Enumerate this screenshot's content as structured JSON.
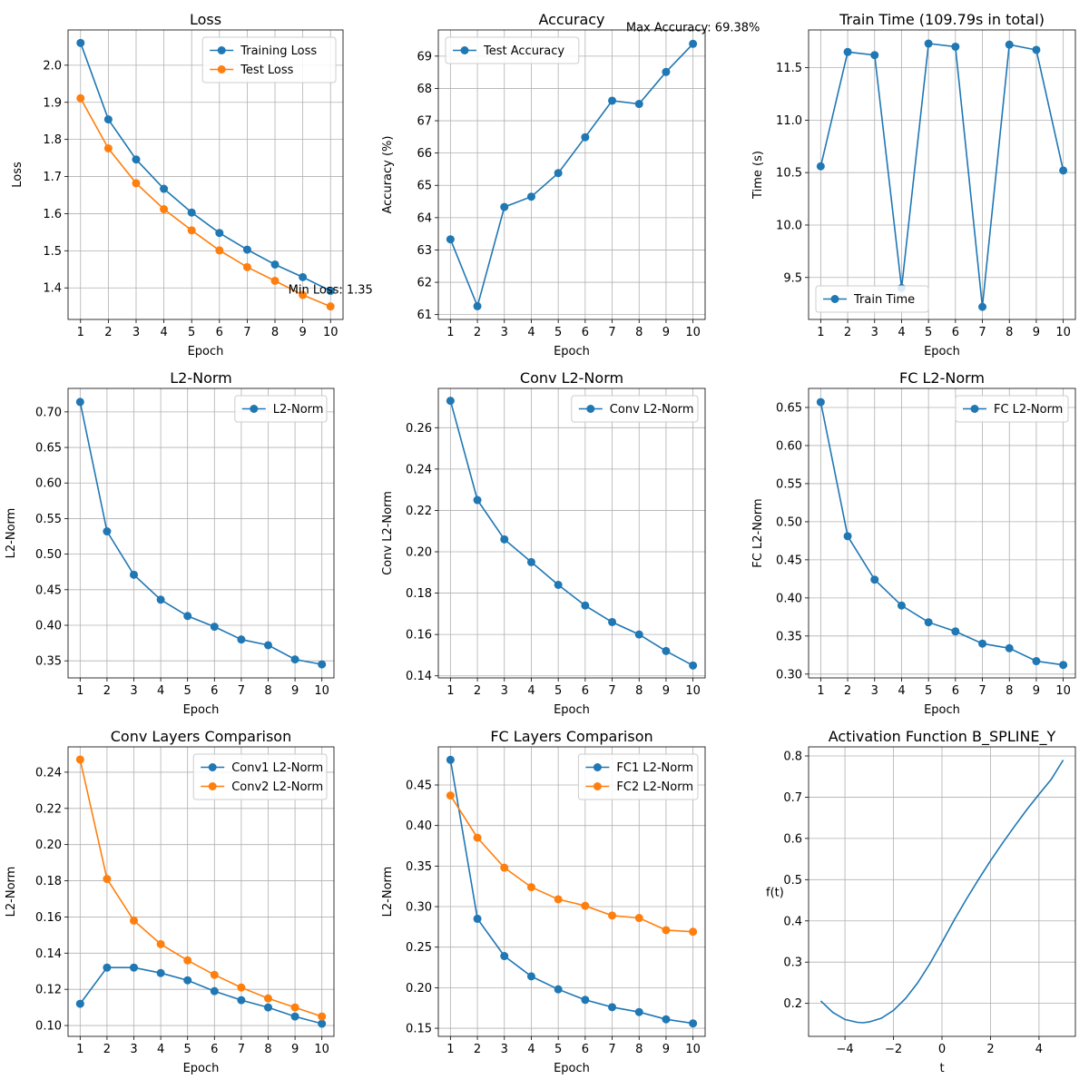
{
  "chart_data": [
    {
      "type": "line",
      "title": "Loss",
      "xlabel": "Epoch",
      "ylabel": "Loss",
      "x": [
        1,
        2,
        3,
        4,
        5,
        6,
        7,
        8,
        9,
        10
      ],
      "xticks": [
        1,
        2,
        3,
        4,
        5,
        6,
        7,
        8,
        9,
        10
      ],
      "xlim": [
        0.55,
        10.45
      ],
      "ylim": [
        1.315,
        2.095
      ],
      "yticks": [
        1.4,
        1.5,
        1.6,
        1.7,
        1.8,
        1.9,
        2.0
      ],
      "ytick_labels": [
        "1.4",
        "1.5",
        "1.6",
        "1.7",
        "1.8",
        "1.9",
        "2.0"
      ],
      "grid": true,
      "legend": "upper right",
      "series": [
        {
          "name": "Training Loss",
          "color": "#1f77b4",
          "values": [
            2.06,
            1.854,
            1.746,
            1.667,
            1.603,
            1.548,
            1.503,
            1.463,
            1.429,
            1.392
          ]
        },
        {
          "name": "Test Loss",
          "color": "#ff7f0e",
          "values": [
            1.911,
            1.776,
            1.682,
            1.612,
            1.555,
            1.501,
            1.456,
            1.419,
            1.381,
            1.35
          ]
        }
      ],
      "annotation": {
        "text": "Min Loss: 1.35",
        "x": 10,
        "y": 1.35
      }
    },
    {
      "type": "line",
      "title": "Accuracy",
      "xlabel": "Epoch",
      "ylabel": "Accuracy (%)",
      "x": [
        1,
        2,
        3,
        4,
        5,
        6,
        7,
        8,
        9,
        10
      ],
      "xticks": [
        1,
        2,
        3,
        4,
        5,
        6,
        7,
        8,
        9,
        10
      ],
      "xlim": [
        0.55,
        10.45
      ],
      "ylim": [
        60.85,
        69.81
      ],
      "yticks": [
        61,
        62,
        63,
        64,
        65,
        66,
        67,
        68,
        69
      ],
      "ytick_labels": [
        "61",
        "62",
        "63",
        "64",
        "65",
        "66",
        "67",
        "68",
        "69"
      ],
      "grid": true,
      "legend": "upper left",
      "series": [
        {
          "name": "Test Accuracy",
          "color": "#1f77b4",
          "values": [
            63.33,
            61.26,
            64.33,
            64.65,
            65.38,
            66.49,
            67.62,
            67.52,
            68.51,
            69.38
          ]
        }
      ],
      "annotation": {
        "text": "Max Accuracy: 69.38%",
        "x": 10,
        "y": 69.38
      }
    },
    {
      "type": "line",
      "title": "Train Time (109.79s in total)",
      "xlabel": "Epoch",
      "ylabel": "Time (s)",
      "x": [
        1,
        2,
        3,
        4,
        5,
        6,
        7,
        8,
        9,
        10
      ],
      "xticks": [
        1,
        2,
        3,
        4,
        5,
        6,
        7,
        8,
        9,
        10
      ],
      "xlim": [
        0.55,
        10.45
      ],
      "ylim": [
        9.1,
        11.86
      ],
      "yticks": [
        9.5,
        10.0,
        10.5,
        11.0,
        11.5
      ],
      "ytick_labels": [
        "9.5",
        "10.0",
        "10.5",
        "11.0",
        "11.5"
      ],
      "grid": true,
      "legend": "lower left",
      "series": [
        {
          "name": "Train Time",
          "color": "#1f77b4",
          "values": [
            10.56,
            11.65,
            11.62,
            9.4,
            11.73,
            11.7,
            9.22,
            11.72,
            11.67,
            10.52
          ]
        }
      ]
    },
    {
      "type": "line",
      "title": "L2-Norm",
      "xlabel": "Epoch",
      "ylabel": "L2-Norm",
      "x": [
        1,
        2,
        3,
        4,
        5,
        6,
        7,
        8,
        9,
        10
      ],
      "xticks": [
        1,
        2,
        3,
        4,
        5,
        6,
        7,
        8,
        9,
        10
      ],
      "xlim": [
        0.55,
        10.45
      ],
      "ylim": [
        0.326,
        0.733
      ],
      "yticks": [
        0.35,
        0.4,
        0.45,
        0.5,
        0.55,
        0.6,
        0.65,
        0.7
      ],
      "ytick_labels": [
        "0.35",
        "0.40",
        "0.45",
        "0.50",
        "0.55",
        "0.60",
        "0.65",
        "0.70"
      ],
      "grid": true,
      "legend": "upper right",
      "series": [
        {
          "name": "L2-Norm",
          "color": "#1f77b4",
          "values": [
            0.714,
            0.532,
            0.471,
            0.436,
            0.413,
            0.398,
            0.38,
            0.372,
            0.352,
            0.345
          ]
        }
      ]
    },
    {
      "type": "line",
      "title": "Conv L2-Norm",
      "xlabel": "Epoch",
      "ylabel": "Conv L2-Norm",
      "x": [
        1,
        2,
        3,
        4,
        5,
        6,
        7,
        8,
        9,
        10
      ],
      "xticks": [
        1,
        2,
        3,
        4,
        5,
        6,
        7,
        8,
        9,
        10
      ],
      "xlim": [
        0.55,
        10.45
      ],
      "ylim": [
        0.139,
        0.279
      ],
      "yticks": [
        0.14,
        0.16,
        0.18,
        0.2,
        0.22,
        0.24,
        0.26
      ],
      "ytick_labels": [
        "0.14",
        "0.16",
        "0.18",
        "0.20",
        "0.22",
        "0.24",
        "0.26"
      ],
      "grid": true,
      "legend": "upper right",
      "series": [
        {
          "name": "Conv L2-Norm",
          "color": "#1f77b4",
          "values": [
            0.273,
            0.225,
            0.206,
            0.195,
            0.184,
            0.174,
            0.166,
            0.16,
            0.152,
            0.145
          ]
        }
      ]
    },
    {
      "type": "line",
      "title": "FC L2-Norm",
      "xlabel": "Epoch",
      "ylabel": "FC L2-Norm",
      "x": [
        1,
        2,
        3,
        4,
        5,
        6,
        7,
        8,
        9,
        10
      ],
      "xticks": [
        1,
        2,
        3,
        4,
        5,
        6,
        7,
        8,
        9,
        10
      ],
      "xlim": [
        0.55,
        10.45
      ],
      "ylim": [
        0.295,
        0.675
      ],
      "yticks": [
        0.3,
        0.35,
        0.4,
        0.45,
        0.5,
        0.55,
        0.6,
        0.65
      ],
      "ytick_labels": [
        "0.30",
        "0.35",
        "0.40",
        "0.45",
        "0.50",
        "0.55",
        "0.60",
        "0.65"
      ],
      "grid": true,
      "legend": "upper right",
      "series": [
        {
          "name": "FC L2-Norm",
          "color": "#1f77b4",
          "values": [
            0.657,
            0.481,
            0.424,
            0.39,
            0.368,
            0.356,
            0.34,
            0.334,
            0.317,
            0.312
          ]
        }
      ]
    },
    {
      "type": "line",
      "title": "Conv Layers Comparison",
      "xlabel": "Epoch",
      "ylabel": "L2-Norm",
      "x": [
        1,
        2,
        3,
        4,
        5,
        6,
        7,
        8,
        9,
        10
      ],
      "xticks": [
        1,
        2,
        3,
        4,
        5,
        6,
        7,
        8,
        9,
        10
      ],
      "xlim": [
        0.55,
        10.45
      ],
      "ylim": [
        0.094,
        0.254
      ],
      "yticks": [
        0.1,
        0.12,
        0.14,
        0.16,
        0.18,
        0.2,
        0.22,
        0.24
      ],
      "ytick_labels": [
        "0.10",
        "0.12",
        "0.14",
        "0.16",
        "0.18",
        "0.20",
        "0.22",
        "0.24"
      ],
      "grid": true,
      "legend": "upper right",
      "series": [
        {
          "name": "Conv1 L2-Norm",
          "color": "#1f77b4",
          "values": [
            0.112,
            0.132,
            0.132,
            0.129,
            0.125,
            0.119,
            0.114,
            0.11,
            0.105,
            0.101
          ]
        },
        {
          "name": "Conv2 L2-Norm",
          "color": "#ff7f0e",
          "values": [
            0.247,
            0.181,
            0.158,
            0.145,
            0.136,
            0.128,
            0.121,
            0.115,
            0.11,
            0.105
          ]
        }
      ]
    },
    {
      "type": "line",
      "title": "FC Layers Comparison",
      "xlabel": "Epoch",
      "ylabel": "L2-Norm",
      "x": [
        1,
        2,
        3,
        4,
        5,
        6,
        7,
        8,
        9,
        10
      ],
      "xticks": [
        1,
        2,
        3,
        4,
        5,
        6,
        7,
        8,
        9,
        10
      ],
      "xlim": [
        0.55,
        10.45
      ],
      "ylim": [
        0.14,
        0.497
      ],
      "yticks": [
        0.15,
        0.2,
        0.25,
        0.3,
        0.35,
        0.4,
        0.45
      ],
      "ytick_labels": [
        "0.15",
        "0.20",
        "0.25",
        "0.30",
        "0.35",
        "0.40",
        "0.45"
      ],
      "grid": true,
      "legend": "upper right",
      "series": [
        {
          "name": "FC1 L2-Norm",
          "color": "#1f77b4",
          "values": [
            0.481,
            0.285,
            0.239,
            0.214,
            0.198,
            0.185,
            0.176,
            0.17,
            0.161,
            0.156
          ]
        },
        {
          "name": "FC2 L2-Norm",
          "color": "#ff7f0e",
          "values": [
            0.437,
            0.385,
            0.348,
            0.324,
            0.309,
            0.301,
            0.289,
            0.286,
            0.271,
            0.269
          ]
        }
      ]
    },
    {
      "type": "line",
      "title": "Activation Function B_SPLINE_Y",
      "xlabel": "t",
      "ylabel": "f(t)",
      "xlim": [
        -5.5,
        5.5
      ],
      "xticks": [
        -4,
        -2,
        0,
        2,
        4
      ],
      "xtick_labels": [
        "−4",
        "−2",
        "0",
        "2",
        "4"
      ],
      "ylim": [
        0.12,
        0.822
      ],
      "yticks": [
        0.2,
        0.3,
        0.4,
        0.5,
        0.6,
        0.7,
        0.8
      ],
      "ytick_labels": [
        "0.2",
        "0.3",
        "0.4",
        "0.5",
        "0.6",
        "0.7",
        "0.8"
      ],
      "grid": true,
      "markers": false,
      "series": [
        {
          "color": "#1f77b4",
          "x": [
            -5,
            -4.5,
            -4,
            -3.5,
            -3.25,
            -3,
            -2.5,
            -2,
            -1.5,
            -1,
            -0.5,
            0,
            0.5,
            1,
            1.5,
            2,
            2.5,
            3,
            3.5,
            4,
            4.5,
            5
          ],
          "values": [
            0.206,
            0.178,
            0.161,
            0.154,
            0.153,
            0.155,
            0.164,
            0.183,
            0.212,
            0.25,
            0.296,
            0.348,
            0.402,
            0.452,
            0.5,
            0.546,
            0.589,
            0.63,
            0.67,
            0.707,
            0.743,
            0.79
          ]
        }
      ]
    }
  ]
}
